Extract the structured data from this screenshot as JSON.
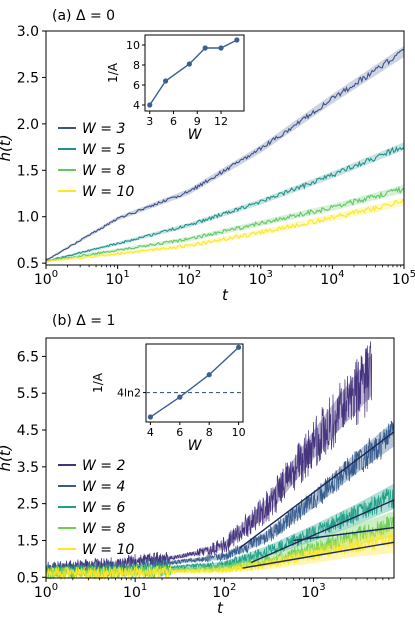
{
  "figure": {
    "panel_a_label": "(a) Δ = 0",
    "panel_b_label": "(b) Δ = 1"
  },
  "chart_data": [
    {
      "type": "line",
      "panel": "(a) Δ = 0",
      "xlabel": "t",
      "ylabel": "h(t)",
      "xscale": "log",
      "xlim": [
        1,
        100000
      ],
      "ylim": [
        0.48,
        3.0
      ],
      "xticks": [
        1,
        10,
        100,
        1000,
        10000,
        100000
      ],
      "xtick_labels": [
        "10^0",
        "10^1",
        "10^2",
        "10^3",
        "10^4",
        "10^5"
      ],
      "yticks": [
        0.5,
        1.0,
        1.5,
        2.0,
        2.5,
        3.0
      ],
      "ytick_labels": [
        "0.5",
        "1.0",
        "1.5",
        "2.0",
        "2.5",
        "3.0"
      ],
      "legend_position": "center-left",
      "series": [
        {
          "name": "W = 3",
          "color": "#3b528b",
          "x": [
            1,
            10,
            100,
            1000,
            10000,
            100000
          ],
          "y": [
            0.53,
            0.98,
            1.27,
            1.73,
            2.27,
            2.78
          ]
        },
        {
          "name": "W = 5",
          "color": "#21918c",
          "x": [
            1,
            10,
            100,
            1000,
            10000,
            100000
          ],
          "y": [
            0.52,
            0.71,
            0.91,
            1.16,
            1.45,
            1.76
          ]
        },
        {
          "name": "W = 8",
          "color": "#5ec962",
          "x": [
            1,
            10,
            100,
            1000,
            10000,
            100000
          ],
          "y": [
            0.52,
            0.64,
            0.76,
            0.93,
            1.1,
            1.3
          ]
        },
        {
          "name": "W = 10",
          "color": "#fde725",
          "x": [
            1,
            10,
            100,
            1000,
            10000,
            100000
          ],
          "y": [
            0.52,
            0.6,
            0.69,
            0.83,
            0.99,
            1.16
          ]
        }
      ],
      "inset": {
        "type": "line",
        "xlabel": "W",
        "ylabel": "1/A",
        "xlim": [
          2.4,
          14.9
        ],
        "ylim": [
          3.4,
          11.0
        ],
        "xticks": [
          3,
          6,
          9,
          12,
          15
        ],
        "yticks": [
          4,
          6,
          8,
          10
        ],
        "x": [
          3,
          5,
          8,
          10,
          12,
          14
        ],
        "y": [
          4.0,
          6.4,
          8.1,
          9.7,
          9.7,
          10.5
        ],
        "color": "#3b5f94"
      }
    },
    {
      "type": "line",
      "panel": "(b) Δ = 1",
      "xlabel": "t",
      "ylabel": "h(t)",
      "xscale": "log",
      "xlim": [
        1,
        8000
      ],
      "ylim": [
        0.48,
        7.0
      ],
      "xticks": [
        1,
        10,
        100,
        1000
      ],
      "xtick_labels": [
        "10^0",
        "10^1",
        "10^2",
        "10^3"
      ],
      "yticks": [
        0.5,
        1.5,
        2.5,
        3.5,
        4.5,
        5.5,
        6.5
      ],
      "ytick_labels": [
        "0.5",
        "1.5",
        "2.5",
        "3.5",
        "4.5",
        "5.5",
        "6.5"
      ],
      "legend_position": "center-left",
      "series": [
        {
          "name": "W = 2",
          "color": "#46337e",
          "x": [
            1,
            5,
            10,
            30,
            100,
            300,
            1000,
            2000,
            4500
          ],
          "y": [
            0.75,
            0.85,
            0.95,
            1.05,
            1.35,
            2.4,
            4.1,
            5.0,
            6.0
          ]
        },
        {
          "name": "W = 4",
          "color": "#365c8d",
          "x": [
            1,
            10,
            100,
            300,
            1000,
            3000,
            8000
          ],
          "y": [
            0.7,
            0.8,
            1.05,
            1.6,
            2.6,
            3.6,
            4.4
          ]
        },
        {
          "name": "W = 6",
          "color": "#1fa187",
          "x": [
            1,
            10,
            100,
            300,
            1000,
            3000,
            8000
          ],
          "y": [
            0.65,
            0.7,
            0.85,
            1.2,
            1.7,
            2.2,
            2.7
          ]
        },
        {
          "name": "W = 8",
          "color": "#6ece58",
          "x": [
            1,
            10,
            100,
            300,
            1000,
            3000,
            8000
          ],
          "y": [
            0.62,
            0.65,
            0.75,
            0.95,
            1.3,
            1.65,
            1.95
          ]
        },
        {
          "name": "W = 10",
          "color": "#fde725",
          "x": [
            1,
            10,
            100,
            300,
            1000,
            3000,
            8000
          ],
          "y": [
            0.6,
            0.62,
            0.7,
            0.85,
            1.1,
            1.35,
            1.5
          ]
        }
      ],
      "fit_lines": [
        {
          "color": "#1b2a55",
          "x": [
            150,
            8000
          ],
          "y": [
            1.3,
            4.45
          ]
        },
        {
          "color": "#1b2a55",
          "x": [
            200,
            8000
          ],
          "y": [
            0.9,
            2.6
          ]
        },
        {
          "color": "#1b2a55",
          "x": [
            600,
            8000
          ],
          "y": [
            1.5,
            1.85
          ]
        },
        {
          "color": "#1b2a55",
          "x": [
            160,
            8000
          ],
          "y": [
            0.75,
            1.45
          ]
        }
      ],
      "inset": {
        "type": "line",
        "xlabel": "W",
        "ylabel": "1/A",
        "xlim": [
          3.7,
          10.3
        ],
        "ylim": [
          1.0,
          5.7
        ],
        "xticks": [
          4,
          6,
          8,
          10
        ],
        "yticks": [
          2.7726
        ],
        "ytick_labels": [
          "4ln2"
        ],
        "x": [
          4,
          6,
          8,
          10
        ],
        "y": [
          1.3,
          2.5,
          3.85,
          5.5
        ],
        "reference_line": {
          "y": 2.7726,
          "style": "dashed"
        },
        "color": "#3b5f94"
      }
    }
  ]
}
